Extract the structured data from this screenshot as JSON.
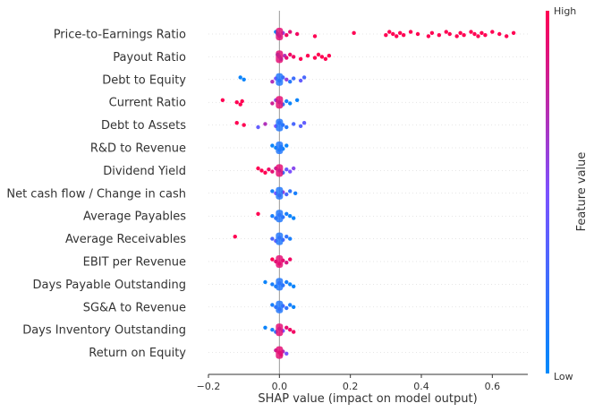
{
  "chart_data": {
    "type": "scatter",
    "subtype": "shap-beeswarm-summary",
    "xlabel": "SHAP value (impact on model output)",
    "xlim": [
      -0.2,
      0.7
    ],
    "xticks": [
      "−0.2",
      "0.0",
      "0.2",
      "0.4",
      "0.6"
    ],
    "xtick_values": [
      -0.2,
      0.0,
      0.2,
      0.4,
      0.6
    ],
    "zero_line": true,
    "row_gridlines": true,
    "colorbar": {
      "label": "Feature value",
      "high_label": "High",
      "low_label": "Low",
      "low_color": "#008afb",
      "mid_color": "#7c52ff",
      "high_color": "#ff0052"
    },
    "features": [
      {
        "name": "Price-to-Earnings Ratio",
        "points": [
          [
            -0.01,
            0.05
          ],
          [
            -0.005,
            0.1
          ],
          [
            0.0,
            0.3
          ],
          [
            0.01,
            0.6
          ],
          [
            0.02,
            0.95
          ],
          [
            0.03,
            0.9
          ],
          [
            0.05,
            0.95
          ],
          [
            0.1,
            1.0
          ],
          [
            0.21,
            1.0
          ],
          [
            0.3,
            1.0
          ],
          [
            0.31,
            1.0
          ],
          [
            0.32,
            1.0
          ],
          [
            0.33,
            1.0
          ],
          [
            0.34,
            1.0
          ],
          [
            0.35,
            1.0
          ],
          [
            0.37,
            1.0
          ],
          [
            0.39,
            1.0
          ],
          [
            0.42,
            1.0
          ],
          [
            0.43,
            1.0
          ],
          [
            0.45,
            1.0
          ],
          [
            0.47,
            1.0
          ],
          [
            0.48,
            1.0
          ],
          [
            0.5,
            1.0
          ],
          [
            0.51,
            1.0
          ],
          [
            0.52,
            1.0
          ],
          [
            0.54,
            1.0
          ],
          [
            0.55,
            1.0
          ],
          [
            0.56,
            1.0
          ],
          [
            0.57,
            1.0
          ],
          [
            0.58,
            1.0
          ],
          [
            0.6,
            1.0
          ],
          [
            0.62,
            1.0
          ],
          [
            0.64,
            1.0
          ],
          [
            0.66,
            1.0
          ]
        ]
      },
      {
        "name": "Payout Ratio",
        "points": [
          [
            -0.005,
            0.05
          ],
          [
            0.0,
            0.2
          ],
          [
            0.005,
            0.3
          ],
          [
            0.015,
            0.7
          ],
          [
            0.02,
            0.9
          ],
          [
            0.03,
            0.95
          ],
          [
            0.04,
            0.95
          ],
          [
            0.06,
            1.0
          ],
          [
            0.08,
            1.0
          ],
          [
            0.1,
            1.0
          ],
          [
            0.11,
            1.0
          ],
          [
            0.12,
            1.0
          ],
          [
            0.13,
            1.0
          ],
          [
            0.14,
            1.0
          ]
        ]
      },
      {
        "name": "Debt to Equity",
        "points": [
          [
            -0.11,
            0.05
          ],
          [
            -0.1,
            0.05
          ],
          [
            -0.02,
            0.7
          ],
          [
            -0.01,
            0.5
          ],
          [
            0.0,
            0.2
          ],
          [
            0.01,
            0.3
          ],
          [
            0.02,
            0.6
          ],
          [
            0.03,
            0.15
          ],
          [
            0.04,
            0.25
          ],
          [
            0.06,
            0.4
          ],
          [
            0.07,
            0.3
          ]
        ]
      },
      {
        "name": "Current Ratio",
        "points": [
          [
            -0.16,
            1.0
          ],
          [
            -0.12,
            1.0
          ],
          [
            -0.11,
            1.0
          ],
          [
            -0.105,
            1.0
          ],
          [
            -0.02,
            0.8
          ],
          [
            -0.01,
            0.6
          ],
          [
            0.0,
            0.3
          ],
          [
            0.01,
            0.2
          ],
          [
            0.02,
            0.1
          ],
          [
            0.03,
            0.05
          ],
          [
            0.05,
            0.05
          ]
        ]
      },
      {
        "name": "Debt to Assets",
        "points": [
          [
            -0.12,
            1.0
          ],
          [
            -0.1,
            1.0
          ],
          [
            -0.06,
            0.4
          ],
          [
            -0.04,
            0.7
          ],
          [
            -0.01,
            0.5
          ],
          [
            0.0,
            0.3
          ],
          [
            0.01,
            0.2
          ],
          [
            0.02,
            0.15
          ],
          [
            0.04,
            0.3
          ],
          [
            0.06,
            0.35
          ],
          [
            0.07,
            0.4
          ]
        ]
      },
      {
        "name": "R&D to Revenue",
        "points": [
          [
            -0.02,
            0.05
          ],
          [
            -0.01,
            0.05
          ],
          [
            0.0,
            0.05
          ],
          [
            0.005,
            0.05
          ],
          [
            0.01,
            0.05
          ],
          [
            0.02,
            0.05
          ]
        ]
      },
      {
        "name": "Dividend Yield",
        "points": [
          [
            -0.06,
            1.0
          ],
          [
            -0.05,
            1.0
          ],
          [
            -0.04,
            1.0
          ],
          [
            -0.03,
            0.95
          ],
          [
            -0.02,
            0.9
          ],
          [
            -0.01,
            0.8
          ],
          [
            0.0,
            0.3
          ],
          [
            0.01,
            0.2
          ],
          [
            0.02,
            0.4
          ],
          [
            0.03,
            0.5
          ],
          [
            0.04,
            0.55
          ]
        ]
      },
      {
        "name": "Net cash flow / Change in cash",
        "points": [
          [
            -0.02,
            0.1
          ],
          [
            -0.01,
            0.5
          ],
          [
            0.0,
            0.7
          ],
          [
            0.01,
            0.6
          ],
          [
            0.02,
            0.3
          ],
          [
            0.03,
            0.2
          ],
          [
            0.045,
            0.1
          ]
        ]
      },
      {
        "name": "Average Payables",
        "points": [
          [
            -0.06,
            1.0
          ],
          [
            -0.02,
            0.1
          ],
          [
            -0.01,
            0.2
          ],
          [
            0.0,
            0.4
          ],
          [
            0.01,
            0.2
          ],
          [
            0.02,
            0.1
          ],
          [
            0.03,
            0.05
          ],
          [
            0.04,
            0.05
          ]
        ]
      },
      {
        "name": "Average Receivables",
        "points": [
          [
            -0.125,
            1.0
          ],
          [
            -0.02,
            0.3
          ],
          [
            -0.01,
            0.4
          ],
          [
            0.0,
            0.5
          ],
          [
            0.01,
            0.3
          ],
          [
            0.02,
            0.2
          ],
          [
            0.03,
            0.1
          ]
        ]
      },
      {
        "name": "EBIT per Revenue",
        "points": [
          [
            -0.02,
            1.0
          ],
          [
            -0.01,
            0.9
          ],
          [
            0.0,
            0.95
          ],
          [
            0.01,
            0.9
          ],
          [
            0.02,
            0.85
          ],
          [
            0.03,
            0.95
          ]
        ]
      },
      {
        "name": "Days Payable Outstanding",
        "points": [
          [
            -0.04,
            0.05
          ],
          [
            -0.02,
            0.1
          ],
          [
            -0.01,
            0.1
          ],
          [
            0.0,
            0.4
          ],
          [
            0.01,
            0.2
          ],
          [
            0.02,
            0.1
          ],
          [
            0.03,
            0.05
          ],
          [
            0.04,
            0.05
          ]
        ]
      },
      {
        "name": "SG&A to Revenue",
        "points": [
          [
            -0.02,
            0.1
          ],
          [
            -0.01,
            0.2
          ],
          [
            0.0,
            0.5
          ],
          [
            0.01,
            0.3
          ],
          [
            0.02,
            0.2
          ],
          [
            0.03,
            0.1
          ],
          [
            0.04,
            0.05
          ]
        ]
      },
      {
        "name": "Days Inventory Outstanding",
        "points": [
          [
            -0.04,
            0.05
          ],
          [
            -0.02,
            0.1
          ],
          [
            -0.01,
            0.2
          ],
          [
            0.0,
            0.4
          ],
          [
            0.01,
            0.5
          ],
          [
            0.02,
            0.9
          ],
          [
            0.03,
            0.95
          ],
          [
            0.04,
            0.95
          ]
        ]
      },
      {
        "name": "Return on Equity",
        "points": [
          [
            -0.01,
            0.8
          ],
          [
            0.0,
            0.9
          ],
          [
            0.005,
            0.85
          ],
          [
            0.01,
            0.7
          ],
          [
            0.02,
            0.5
          ]
        ]
      }
    ]
  }
}
